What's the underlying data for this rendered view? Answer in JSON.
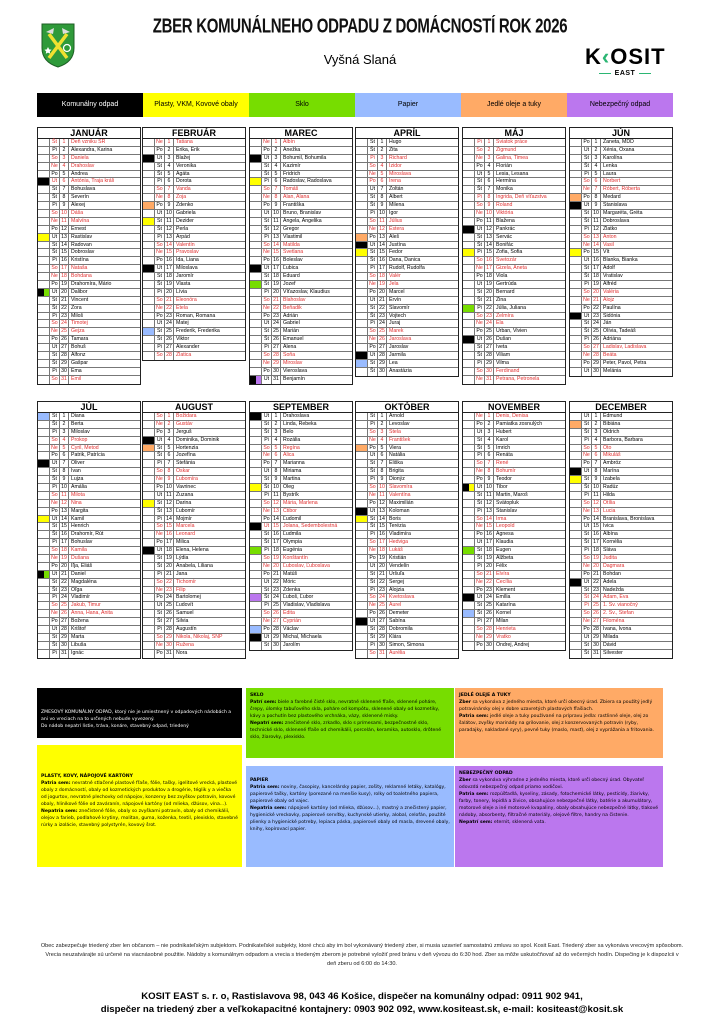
{
  "header": {
    "title": "ZBER KOMUNÁLNEHO ODPADU Z DOMÁCNOSTÍ ROK 2026",
    "subtitle": "Vyšná Slaná",
    "logo_text": "KOSIT EAST"
  },
  "legend": [
    {
      "key": "K",
      "label": "Komunálny odpad",
      "color": "#000000",
      "text": "#ffffff"
    },
    {
      "key": "P",
      "label": "Plasty, VKM, Kovové obaly",
      "color": "#ffff00",
      "text": "#000000"
    },
    {
      "key": "S",
      "label": "Sklo",
      "color": "#77dd00",
      "text": "#000000"
    },
    {
      "key": "Pa",
      "label": "Papier",
      "color": "#99bbff",
      "text": "#000000"
    },
    {
      "key": "O",
      "label": "Jedlé oleje a tuky",
      "color": "#ffaa66",
      "text": "#000000"
    },
    {
      "key": "N",
      "label": "Nebezpečný odpad",
      "color": "#bb77ee",
      "text": "#000000"
    }
  ],
  "year": 2026,
  "weekdays": [
    "Ne",
    "Po",
    "Ut",
    "St",
    "Št",
    "Pi",
    "So"
  ],
  "holiday_color": "#e03030",
  "months": [
    {
      "name": "JANUÁR",
      "holidays": [
        1,
        6
      ],
      "markers": {
        "6": [
          "K"
        ],
        "13": [
          "P"
        ],
        "20": [
          "K",
          "S"
        ]
      },
      "days": [
        "Deň vzniku SR",
        "Alexandra, Karina",
        "Daniela",
        "Drahoslav",
        "Andrea",
        "Antónia, Traja králi",
        "Bohuslava",
        "Severín",
        "Alexej",
        "Dáša",
        "Malvína",
        "Ernest",
        "Rastislav",
        "Radovan",
        "Dobroslav",
        "Kristína",
        "Nataša",
        "Bohdana",
        "Drahomíra, Mário",
        "Dalibor",
        "Vincent",
        "Zora",
        "Miloš",
        "Timotej",
        "Gejza",
        "Tamara",
        "Bohuš",
        "Alfonz",
        "Gašpar",
        "Ema",
        "Emil"
      ]
    },
    {
      "name": "FEBRUÁR",
      "holidays": [],
      "markers": {
        "3": [
          "K"
        ],
        "9": [
          "O"
        ],
        "11": [
          "P"
        ],
        "17": [
          "K"
        ],
        "25": [
          "Pa"
        ]
      },
      "days": [
        "Tatiana",
        "Erika, Erik",
        "Blažej",
        "Veronika",
        "Agáta",
        "Dorota",
        "Vanda",
        "Zoja",
        "Zdenko",
        "Gabriela",
        "Dezider",
        "Perla",
        "Arpád",
        "Valentín",
        "Pravoslav",
        "Ida, Liana",
        "Miloslava",
        "Jaromír",
        "Vlasta",
        "Lívia",
        "Eleonóra",
        "Etela",
        "Roman, Romana",
        "Matej",
        "Frederik, Frederika",
        "Viktor",
        "Alexander",
        "Zlatica"
      ]
    },
    {
      "name": "MAREC",
      "holidays": [],
      "markers": {
        "3": [
          "K"
        ],
        "6": [
          "P"
        ],
        "17": [
          "K"
        ],
        "19": [
          "S"
        ],
        "31": [
          "K",
          "N"
        ]
      },
      "days": [
        "Albín",
        "Anežka",
        "Bohumil, Bohumila",
        "Kazimír",
        "Fridrich",
        "Radoslav, Radoslava",
        "Tomáš",
        "Alan, Alana",
        "Františka",
        "Bruno, Branislav",
        "Angela, Angelika",
        "Gregor",
        "Vlastimil",
        "Matilda",
        "Svetlana",
        "Boleslav",
        "Ľubica",
        "Eduard",
        "Jozef",
        "Víťazoslav, Klaudius",
        "Blahoslav",
        "Beňadik",
        "Adrián",
        "Gabriel",
        "Marián",
        "Emanuel",
        "Alena",
        "Soňa",
        "Miroslav",
        "Vieroslava",
        "Benjamín"
      ]
    },
    {
      "name": "APRÍL",
      "holidays": [
        3,
        6
      ],
      "markers": {
        "13": [
          "O"
        ],
        "14": [
          "K"
        ],
        "15": [
          "P"
        ],
        "28": [
          "K"
        ],
        "29": [
          "Pa"
        ]
      },
      "days": [
        "Hugo",
        "Zita",
        "Richard",
        "Izidor",
        "Miroslava",
        "Irena",
        "Zoltán",
        "Albert",
        "Milena",
        "Igor",
        "Július",
        "Estera",
        "Aleš",
        "Justína",
        "Fedor",
        "Dana, Danica",
        "Rudolf, Rudolfa",
        "Valér",
        "Jela",
        "Marcel",
        "Ervín",
        "Slavomír",
        "Vojtech",
        "Juraj",
        "Marek",
        "Jaroslava",
        "Jaroslav",
        "Jarmila",
        "Lea",
        "Anastázia"
      ]
    },
    {
      "name": "MÁJ",
      "holidays": [
        1,
        8
      ],
      "markers": {
        "12": [
          "K"
        ],
        "15": [
          "P"
        ],
        "22": [
          "S"
        ],
        "26": [
          "K"
        ]
      },
      "days": [
        "Sviatok práce",
        "Žigmund",
        "Galina, Timea",
        "Florián",
        "Lesia, Lesana",
        "Hermína",
        "Monika",
        "Ingrida, Deň víťazstva",
        "Roland",
        "Viktória",
        "Blažena",
        "Pankrác",
        "Servác",
        "Bonifác",
        "Žofia, Sofia",
        "Svetozár",
        "Gizela, Aneta",
        "Viola",
        "Gertrúda",
        "Bernard",
        "Zina",
        "Júlia, Juliana",
        "Želmíra",
        "Ela",
        "Urban, Vivien",
        "Dušan",
        "Iveta",
        "Viliam",
        "Vilma",
        "Ferdinand",
        "Petrana, Petronela"
      ]
    },
    {
      "name": "JÚN",
      "holidays": [],
      "markers": {
        "8": [
          "O"
        ],
        "9": [
          "K"
        ],
        "15": [
          "P"
        ],
        "23": [
          "K"
        ]
      },
      "days": [
        "Žaneta, MDD",
        "Xénia, Oxana",
        "Karolína",
        "Lenka",
        "Laura",
        "Norbert",
        "Róbert, Róberta",
        "Medard",
        "Stanislava",
        "Margaréta, Gréta",
        "Dobroslava",
        "Zlatko",
        "Anton",
        "Vasil",
        "Vít",
        "Blanka, Bianka",
        "Adolf",
        "Vratislav",
        "Alfréd",
        "Valéria",
        "Alojz",
        "Paulína",
        "Sidónia",
        "Ján",
        "Olívia, Tadeáš",
        "Adriána",
        "Ladislav, Ladislava",
        "Beáta",
        "Peter, Pavol, Petra",
        "Melánia"
      ]
    },
    {
      "name": "JÚL",
      "holidays": [
        5
      ],
      "markers": {
        "1": [
          "Pa"
        ],
        "7": [
          "K"
        ],
        "14": [
          "P"
        ],
        "21": [
          "K",
          "S"
        ]
      },
      "days": [
        "Diana",
        "Berta",
        "Miloslav",
        "Prokop",
        "Cyril, Metod",
        "Patrik, Patrícia",
        "Oliver",
        "Ivan",
        "Lujza",
        "Amália",
        "Milota",
        "Nina",
        "Margita",
        "Kamil",
        "Henrich",
        "Drahomír, Rút",
        "Bohuslav",
        "Kamila",
        "Dušana",
        "Iľja, Eliáš",
        "Daniel",
        "Magdaléna",
        "Oľga",
        "Vladimír",
        "Jakub, Timur",
        "Anna, Hana, Anita",
        "Božena",
        "Krištof",
        "Marta",
        "Libuša",
        "Ignác"
      ]
    },
    {
      "name": "AUGUST",
      "holidays": [
        29
      ],
      "markers": {
        "4": [
          "K"
        ],
        "5": [
          "O"
        ],
        "12": [
          "P"
        ],
        "18": [
          "K"
        ]
      },
      "days": [
        "Božidara",
        "Gustáv",
        "Jerguš",
        "Dominika, Dominik",
        "Hortenzia",
        "Jozefína",
        "Štefánia",
        "Oskar",
        "Ľubomíra",
        "Vavrinec",
        "Zuzana",
        "Darina",
        "Ľubomír",
        "Mojmír",
        "Marcela",
        "Leonard",
        "Milica",
        "Elena, Helena",
        "Lýdia",
        "Anabela, Liliana",
        "Jana",
        "Tichomír",
        "Filip",
        "Bartolomej",
        "Ľudovít",
        "Samuel",
        "Silvia",
        "Augustín",
        "Nikola, Nikolaj, SNP",
        "Ružena",
        "Nora"
      ]
    },
    {
      "name": "SEPTEMBER",
      "holidays": [
        15
      ],
      "markers": {
        "1": [
          "K"
        ],
        "10": [
          "P"
        ],
        "15": [
          "K"
        ],
        "18": [
          "S"
        ],
        "24": [
          "N"
        ],
        "28": [
          "Pa"
        ],
        "29": [
          "K"
        ]
      },
      "days": [
        "Drahoslava",
        "Linda, Rebeka",
        "Belo",
        "Rozália",
        "Regína",
        "Alica",
        "Marianna",
        "Miriama",
        "Martina",
        "Oleg",
        "Bystrík",
        "Mária, Marlena",
        "Ctibor",
        "Ľudomil",
        "Jolana, Sedembolestná",
        "Ľudmila",
        "Olympia",
        "Eugénia",
        "Konštantín",
        "Ľuboslav, Ľuboslava",
        "Matúš",
        "Móric",
        "Zdenka",
        "Ľuboš, Ľubor",
        "Vladislav, Vladislava",
        "Edita",
        "Cyprián",
        "Václav",
        "Michal, Michaela",
        "Jarolím"
      ]
    },
    {
      "name": "OKTÓBER",
      "holidays": [],
      "markers": {
        "5": [
          "O"
        ],
        "13": [
          "K"
        ],
        "14": [
          "P"
        ],
        "27": [
          "K"
        ]
      },
      "days": [
        "Arnold",
        "Levoslav",
        "Stela",
        "František",
        "Viera",
        "Natália",
        "Eliška",
        "Brigita",
        "Dionýz",
        "Slavomíra",
        "Valentína",
        "Maximilián",
        "Koloman",
        "Boris",
        "Terézia",
        "Vladimíra",
        "Hedviga",
        "Lukáš",
        "Kristián",
        "Vendelín",
        "Uršuľa",
        "Sergej",
        "Alojzia",
        "Kvetoslava",
        "Aurel",
        "Demeter",
        "Sabína",
        "Dobromila",
        "Klára",
        "Šimon, Simona",
        "Aurélia"
      ]
    },
    {
      "name": "NOVEMBER",
      "holidays": [
        1
      ],
      "markers": {
        "10": [
          "K",
          "P"
        ],
        "18": [
          "S"
        ],
        "24": [
          "K"
        ],
        "26": [
          "Pa"
        ]
      },
      "days": [
        "Denis, Denisa",
        "Pamiatka zosnulých",
        "Hubert",
        "Karol",
        "Imrich",
        "Renáta",
        "René",
        "Bohumír",
        "Teodor",
        "Tibor",
        "Martin, Maroš",
        "Svätopluk",
        "Stanislav",
        "Irma",
        "Leopold",
        "Agnesa",
        "Klaudia",
        "Eugen",
        "Alžbeta",
        "Félix",
        "Elvíra",
        "Cecília",
        "Klement",
        "Emília",
        "Katarína",
        "Kornel",
        "Milan",
        "Henrieta",
        "Vratko",
        "Ondrej, Andrej"
      ]
    },
    {
      "name": "DECEMBER",
      "holidays": [
        24,
        25,
        26
      ],
      "markers": {
        "2": [
          "O"
        ],
        "8": [
          "K"
        ],
        "9": [
          "P"
        ],
        "22": [
          "K"
        ]
      },
      "days": [
        "Edmund",
        "Bibiána",
        "Oldrich",
        "Barbora, Barbara",
        "Oto",
        "Mikuláš",
        "Ambróz",
        "Marína",
        "Izabela",
        "Radúz",
        "Hilda",
        "Otília",
        "Lucia",
        "Branislava, Bronislava",
        "Ivica",
        "Albína",
        "Kornélia",
        "Sláva",
        "Judita",
        "Dagmara",
        "Bohdan",
        "Adela",
        "Nadežda",
        "Adam, Eva",
        "1. Sv. vianočný",
        "2. Sv., Štefan",
        "Filoména",
        "Ivana, Ivona",
        "Milada",
        "Dávid",
        "Silvester"
      ]
    }
  ],
  "info": {
    "komunalny": {
      "text": "ZMESOVÝ KOMUNÁLNY ODPAD, ktorý nie je umiestnený v odpadových nádobách a ani vo vreciach na to určených nebude vyvezený.",
      "text2": "Do nádob nepatrí lístie, tráva, konáre, stavebný odpad, triedený"
    },
    "plasty": {
      "title": "PLASTY, KOVY, NÁPOJOVÉ KARTÓNY",
      "in_label": "Patria sem:",
      "in": " nevratné stlačené plastové fľaše, fólie, tašky, igelitové vrecká, plastové obaly z domácností, obaly od kozmetických produktov a drogérie, téglik y a viečka od jogurtov, nevratné plechovky od nápojov, konzervy bez zvyškov potravín, kovové obaly, hliníkové fólie od zaváranín, nápojové kartóny (od mlieka, džúsov, vína...).",
      "out_label": "Nepatria sem:",
      "out": " znečistené fólie, obaly so zvyškami potravín, obaly od chemikálií, olejov a farieb, podlahové krytiny, molitan, guma, koženka, textil, plexisklo, stavebné rúrky a izolácie, stavebný polystyrén, kovový šrot."
    },
    "sklo": {
      "title": "SKLO",
      "in_label": "Patrí sem:",
      "in": " biele a farebné čisté sklo, nevratné sklenené fľaše, sklenené poháre, črepy, úlomky tabuľového skla, poháre od kompótu, sklenené obaly od kozmetiky, kávy a pochutín bez plastového vrchnáka, vázy, sklenené misky.",
      "out_label": "Nepatrí sem:",
      "out": " znečistené sklo, zrkadlo, sklo s prímesami, bezpečnostné sklo, technické sklo, sklenené fľaše od chemikálií, porcelán, keramika, autosklo, drôtené sklo, žiarovky, plexisklo."
    },
    "papier": {
      "title": "PAPIER",
      "in_label": "Patria sem:",
      "in": " noviny, časopisy, kancelársky papier, zošity, reklamné letáky, katalógy, papierové tašky, kartóny (porezané na menšie kusy), rolky od toaletného papiera, papierové obaly od vajec.",
      "out_label": "Nepatria sem:",
      "out": " nápojové kartóny (od mlieka, džúsov...), mastný a znečistený papier, hygienické vreckovky, papierové servítky, kuchynské utierky, alobal, celofán, použité plienky a hygienické potreby, lepiaca páska, papierové obaly od masla, drevené obaly, knihy, kopírovací papier."
    },
    "oleje": {
      "title": "JEDLÉ OLEJE A TUKY",
      "in_label": "Zber",
      "in": " sa vykonáva z jedného miesta, ktoré určí obecný úrad. Zbiera sa použitý jedlý potravinársky olej v dobre uzavretých plastových fľašiach.",
      "out_label": "Patria sem:",
      "out": " jedlé oleje a tuky používané na prípravu jedla: rastlinné oleje, olej zo šalátov, zvyšky marinády na grilovanie, olej z konzervovaných potravín (ryby, paradajky, nakladané syry), pevné tuky (maslo, masť), olej z vyprážania a fritovania."
    },
    "nebezpecny": {
      "title": "NEBEZPEČNÝ ODPAD",
      "in_label": "Zber",
      "in": " sa vykonáva výhradne z jedného miesta, ktoré určí obecný úrad. Obyvateľ odovzdá nebezpečný odpad priamo vodičovi.",
      "mid_label": "Patria sem:",
      "mid": " rozpúšťadlá, kyseliny, zásady, fotochemické látky, pesticídy, žiarivky, farby, tonery, lepidlá a živice, obsahujúce nebezpečné látky, batérie a akumulátory, motorové oleje a iné motorové kvapaliny, obaly obsahujúce nebezpečné látky, tlakové nádoby, absorbenty, filtračné materiály, olejové filtre, handry na čistenie.",
      "out_label": "Nepatrí sem:",
      "out": " eternit, sklenená vata."
    }
  },
  "footer": {
    "note": "Obec zabezpečuje triedený zber len občanom – nie podnikateľským subjektom. Podnikateľské subjekty, ktoré chcú aby im bol vykonávaný triedený zber, si musia uzavrieť samostatnú zmluvu so spol. Kosit East. Triedený zber sa vykonáva vrecovým spôsobom. Vrecia neuzatvárajte sú určené na viacnásobné použitie. Nádoby s komunálnym odpadom a vrecia s triedeným zberom je potrebné vyložiť pred bránu v deň vývozu do 6:30 hod. Zber sa môže uskutočňovať až do večerných hodín. Dispečing je k dispozícii v deň zberu od 6:00 do 14:30.",
    "contact1": "KOSIT EAST s. r. o, Rastislavova 98, 043 46 Košice, dispečer na komunálny odpad: 0911 902 941,",
    "contact2": "dispečer na triedený zber a veľkokapacitné kontajnery: 0903 902 092, www.kositeast.sk, e-mail: kositeast@kosit.sk"
  }
}
